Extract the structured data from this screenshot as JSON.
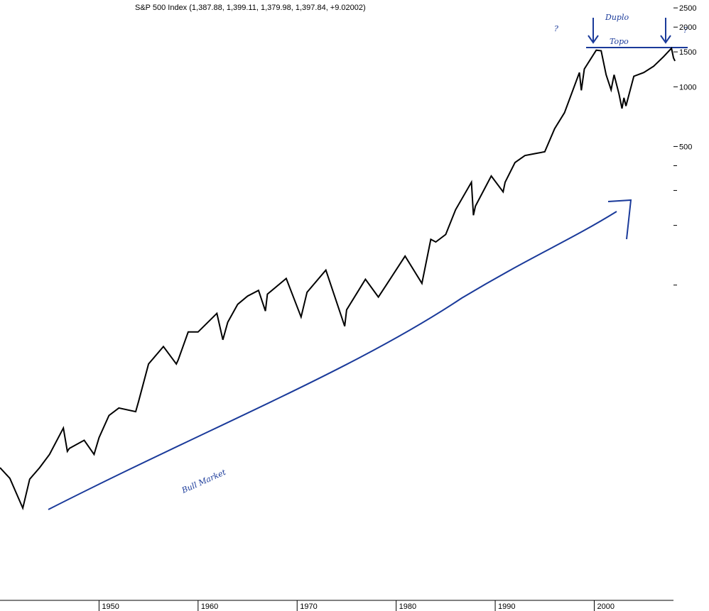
{
  "chart_data": {
    "type": "line",
    "title": "S&P 500 Index (1,387.88, 1,399.11, 1,379.98, 1,397.84, +9.02002)",
    "color": "#000000",
    "log_scale": true,
    "x": [
      1940,
      1941.0,
      1942.3,
      1943,
      1944,
      1945,
      1946.4,
      1946.8,
      1947,
      1948.5,
      1949.5,
      1950,
      1951,
      1952,
      1953.7,
      1954,
      1955,
      1956.5,
      1957.8,
      1958,
      1959,
      1960,
      1961.9,
      1962.5,
      1963,
      1964,
      1965,
      1966.1,
      1966.8,
      1967,
      1968.9,
      1970.4,
      1971,
      1972.9,
      1974.8,
      1975,
      1976.9,
      1978.2,
      1979,
      1980.9,
      1982.6,
      1983.5,
      1984,
      1985,
      1986,
      1987.6,
      1987.8,
      1988,
      1989.6,
      1990.8,
      1991,
      1992,
      1993,
      1994,
      1995,
      1996,
      1997,
      1998.5,
      1998.7,
      1999,
      2000.2,
      2000.7,
      2001.2,
      2001.7,
      2002,
      2002.5,
      2002.8,
      2003,
      2003.2,
      2004,
      2005,
      2006,
      2007,
      2007.8,
      2008.0,
      2008.15
    ],
    "values": [
      12,
      10.6,
      7.5,
      10.5,
      12,
      14,
      19,
      14.5,
      15,
      16.5,
      14,
      17,
      22,
      24,
      23,
      26,
      40,
      49,
      40,
      42,
      58,
      58,
      72,
      53,
      65,
      80,
      88,
      94,
      74,
      90,
      108,
      69,
      92,
      119,
      62,
      75,
      107,
      87,
      100,
      140,
      102,
      170,
      165,
      180,
      240,
      330,
      225,
      250,
      355,
      295,
      330,
      415,
      450,
      460,
      470,
      615,
      740,
      1180,
      960,
      1230,
      1530,
      1520,
      1150,
      965,
      1150,
      920,
      777,
      880,
      800,
      1130,
      1180,
      1270,
      1420,
      1565,
      1400,
      1350
    ],
    "xlim": [
      1940,
      2008
    ],
    "xticks": [
      1950,
      1960,
      1970,
      1980,
      1990,
      2000
    ],
    "ylim": [
      2.57,
      2740
    ],
    "yticks": [
      2500,
      2000,
      1500,
      1000,
      500
    ],
    "minor_yticks": [
      400,
      300,
      200,
      100
    ],
    "annotations": [
      "Bull Market",
      "Duplo",
      "Topo",
      "?",
      "?"
    ]
  }
}
